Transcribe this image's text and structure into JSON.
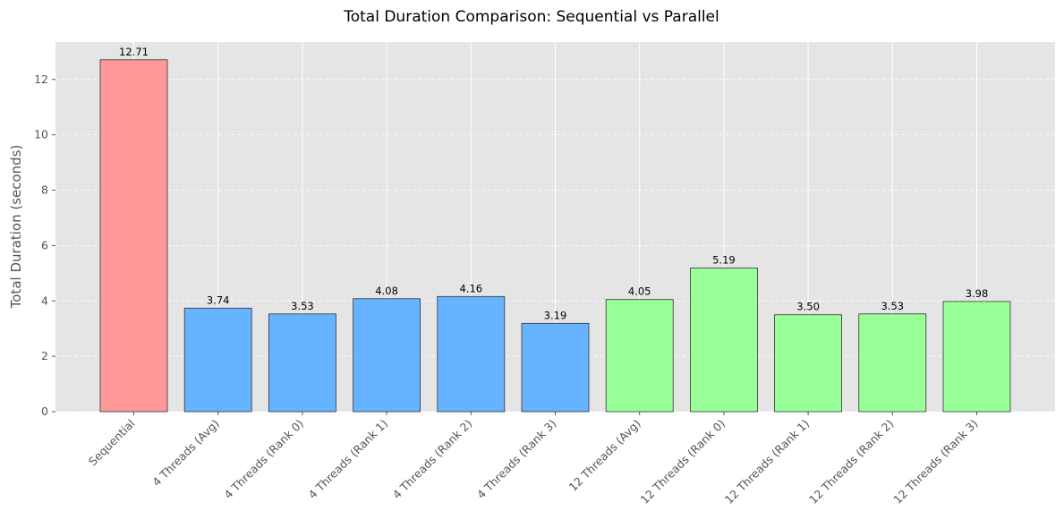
{
  "chart_data": {
    "type": "bar",
    "title": "Total Duration Comparison: Sequential vs Parallel",
    "xlabel": "",
    "ylabel": "Total Duration (seconds)",
    "ylim": [
      0,
      13.35
    ],
    "yticks": [
      0,
      2,
      4,
      6,
      8,
      10,
      12
    ],
    "grid": true,
    "categories": [
      "Sequential",
      "4 Threads (Avg)",
      "4 Threads (Rank 0)",
      "4 Threads (Rank 1)",
      "4 Threads (Rank 2)",
      "4 Threads (Rank 3)",
      "12 Threads (Avg)",
      "12 Threads (Rank 0)",
      "12 Threads (Rank 1)",
      "12 Threads (Rank 2)",
      "12 Threads (Rank 3)"
    ],
    "values": [
      12.71,
      3.74,
      3.53,
      4.08,
      4.16,
      3.19,
      4.05,
      5.19,
      3.5,
      3.53,
      3.98
    ],
    "data_labels": [
      "12.71",
      "3.74",
      "3.53",
      "4.08",
      "4.16",
      "3.19",
      "4.05",
      "5.19",
      "3.50",
      "3.53",
      "3.98"
    ],
    "bar_colors": [
      "#ff9999",
      "#66b3ff",
      "#66b3ff",
      "#66b3ff",
      "#66b3ff",
      "#66b3ff",
      "#99ff99",
      "#99ff99",
      "#99ff99",
      "#99ff99",
      "#99ff99"
    ],
    "colors": {
      "plot_background": "#e5e5e5",
      "grid": "#ffffff",
      "bar_edge": "#333333",
      "text": "#555555"
    }
  }
}
